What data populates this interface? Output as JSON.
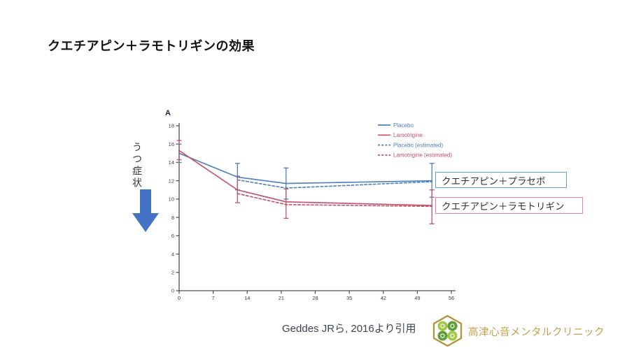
{
  "slide": {
    "title": "クエチアピン＋ラモトリギンの効果",
    "y_axis_annotation": "うつ症状",
    "citation": "Geddes JRら, 2016より引用",
    "clinic_name": "高津心音メンタルクリニック"
  },
  "annotations": {
    "placebo_box": "クエチアピン＋プラセボ",
    "lamotrigine_box": "クエチアピン＋ラモトリギン"
  },
  "icons": {
    "down_arrow": "thick-down-block-arrow",
    "logo": "gold-hexagon-green-clover"
  },
  "colors": {
    "placebo_line": "#4d7fbd",
    "lamotrigine_line": "#c4506a",
    "arrow_blue": "#4472c4",
    "box_blue_border": "#63a0d8",
    "box_red_border": "#ef8396",
    "clinic_gold": "#c2a24b",
    "axis": "#4d4d4d",
    "tick_label": "#39404f"
  },
  "chart_data": {
    "type": "line",
    "panel_label": "A",
    "title": "",
    "xlabel": "",
    "ylabel": "",
    "xlim": [
      0,
      56
    ],
    "ylim": [
      0,
      18
    ],
    "x_ticks": [
      0,
      7,
      14,
      21,
      28,
      35,
      42,
      49,
      56
    ],
    "y_ticks": [
      0,
      2,
      4,
      6,
      8,
      10,
      12,
      14,
      16,
      18
    ],
    "grid": false,
    "legend_position": "top-right",
    "series": [
      {
        "name": "Placebo",
        "color": "#4d7fbd",
        "dash": false,
        "x": [
          0,
          12,
          22,
          52
        ],
        "y": [
          15.0,
          12.4,
          11.7,
          12.0
        ],
        "err_low": [
          14.0,
          11.0,
          10.0,
          10.2
        ],
        "err_high": [
          16.0,
          13.9,
          13.4,
          13.9
        ]
      },
      {
        "name": "Lamotrigine",
        "color": "#c4506a",
        "dash": false,
        "x": [
          0,
          12,
          22,
          52
        ],
        "y": [
          15.3,
          11.0,
          9.7,
          9.3
        ],
        "err_low": [
          14.3,
          9.6,
          7.9,
          7.3
        ],
        "err_high": [
          16.4,
          12.5,
          11.1,
          11.0
        ]
      },
      {
        "name": "Placebo (estimated)",
        "color": "#4d7fbd",
        "dash": true,
        "x": [
          12,
          22,
          52
        ],
        "y": [
          12.1,
          11.2,
          11.9
        ]
      },
      {
        "name": "Lamotrigine (estimated)",
        "color": "#c4506a",
        "dash": true,
        "x": [
          12,
          22,
          52
        ],
        "y": [
          10.6,
          9.4,
          9.2
        ]
      }
    ]
  }
}
